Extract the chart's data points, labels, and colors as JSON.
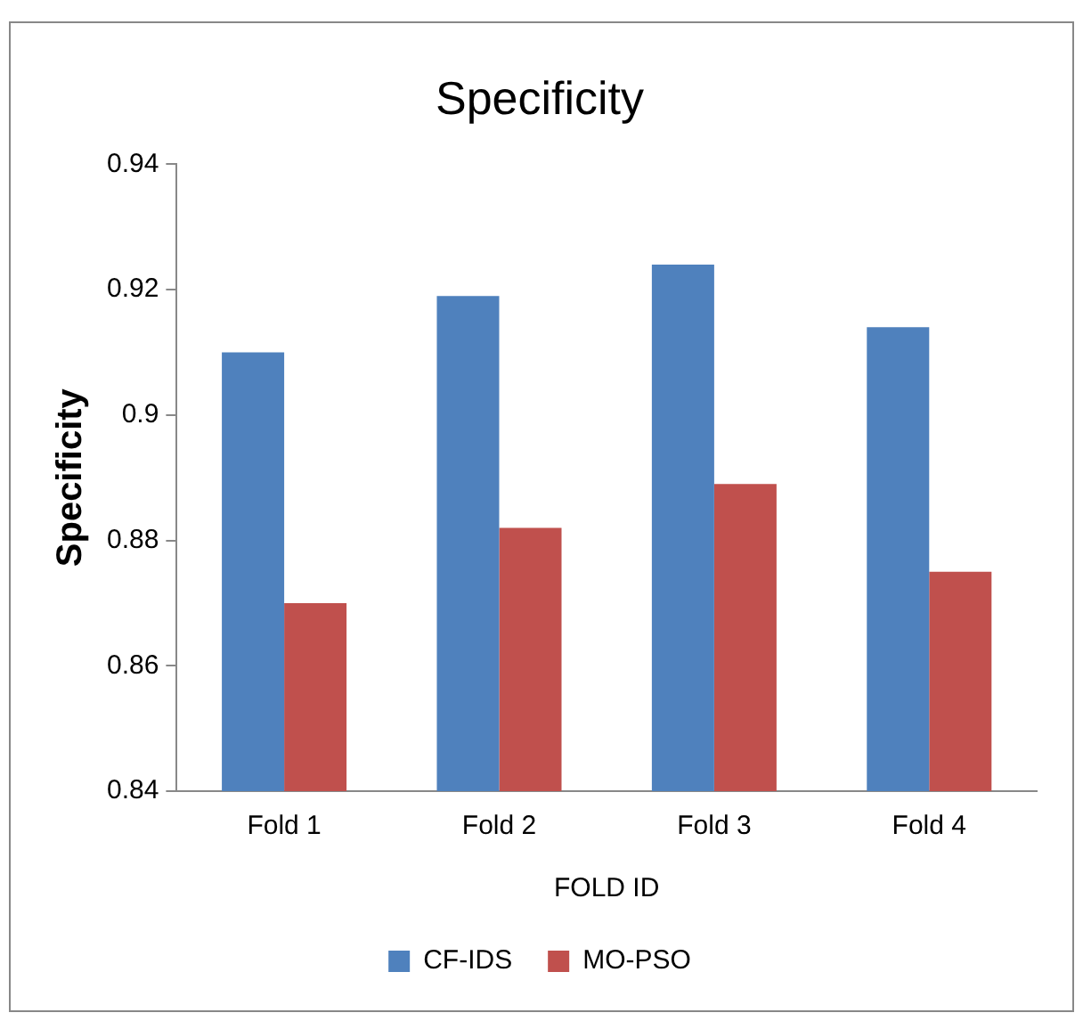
{
  "chart_data": {
    "type": "bar",
    "title": "Specificity",
    "xlabel": "FOLD ID",
    "ylabel": "Specificity",
    "categories": [
      "Fold 1",
      "Fold 2",
      "Fold 3",
      "Fold 4"
    ],
    "series": [
      {
        "name": "CF-IDS",
        "color": "#4f81bd",
        "values": [
          0.91,
          0.919,
          0.924,
          0.914
        ]
      },
      {
        "name": "MO-PSO",
        "color": "#c0504d",
        "values": [
          0.87,
          0.882,
          0.889,
          0.875
        ]
      }
    ],
    "ylim": [
      0.84,
      0.94
    ],
    "yticks": [
      0.84,
      0.86,
      0.88,
      0.9,
      0.92,
      0.94
    ],
    "grid": false,
    "legend": "bottom"
  }
}
